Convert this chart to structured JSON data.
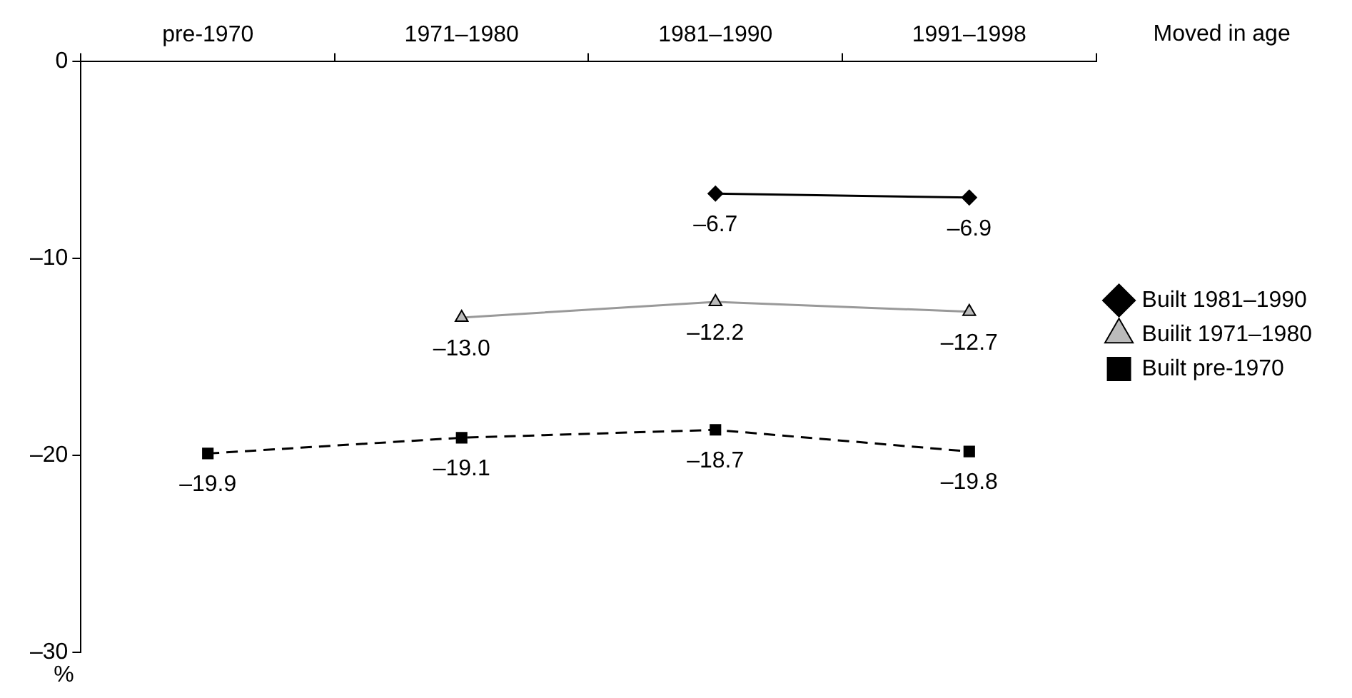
{
  "chart_data": {
    "type": "line",
    "xlabel": "Moved in age",
    "ylabel": "%",
    "categories": [
      "pre-1970",
      "1971–1980",
      "1981–1990",
      "1991–1998"
    ],
    "ylim": [
      -30,
      0
    ],
    "yticks": [
      {
        "value": 0,
        "label": "0"
      },
      {
        "value": -10,
        "label": "–10"
      },
      {
        "value": -20,
        "label": "–20"
      },
      {
        "value": -30,
        "label": "–30"
      }
    ],
    "grid": false,
    "legend": "right",
    "series": [
      {
        "name": "Built 1981–1990",
        "color": "#000000",
        "marker": "diamond",
        "line_style": "solid",
        "values": [
          null,
          null,
          -6.7,
          -6.9
        ],
        "value_labels": [
          null,
          null,
          "–6.7",
          "–6.9"
        ]
      },
      {
        "name": "Builit 1971–1980",
        "color": "#999999",
        "marker": "triangle",
        "line_style": "solid",
        "values": [
          null,
          -13.0,
          -12.2,
          -12.7
        ],
        "value_labels": [
          null,
          "–13.0",
          "–12.2",
          "–12.7"
        ]
      },
      {
        "name": "Built pre-1970",
        "color": "#000000",
        "marker": "square",
        "line_style": "dashed",
        "values": [
          -19.9,
          -19.1,
          -18.7,
          -19.8
        ],
        "value_labels": [
          "–19.9",
          "–19.1",
          "–18.7",
          "–19.8"
        ]
      }
    ]
  }
}
